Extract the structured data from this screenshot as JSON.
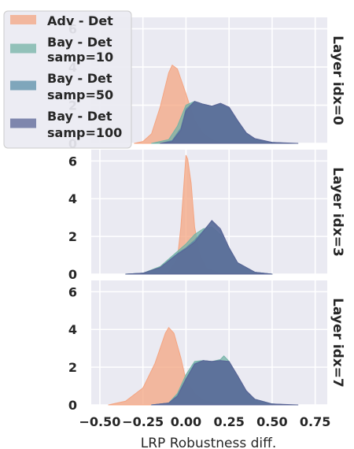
{
  "chart_data": {
    "type": "area",
    "title": "",
    "xlabel": "LRP Robustness diff.",
    "ylabel": "",
    "xlim": [
      -0.55,
      0.82
    ],
    "ylim": [
      0,
      6.6
    ],
    "x_ticks": [
      "−0.50",
      "−0.25",
      "0.00",
      "0.25",
      "0.50",
      "0.75"
    ],
    "x_tick_values": [
      -0.5,
      -0.25,
      0.0,
      0.25,
      0.5,
      0.75
    ],
    "y_ticks": [
      "0",
      "2",
      "4",
      "6"
    ],
    "y_tick_values": [
      0,
      2,
      4,
      6
    ],
    "grid": true,
    "legend_position": "top-left",
    "series": [
      {
        "name": "Adv - Det",
        "color": "#f4a582"
      },
      {
        "name": "Bay - Det\nsamp=10",
        "color": "#74b3a6"
      },
      {
        "name": "Bay - Det\nsamp=50",
        "color": "#5b8fa8"
      },
      {
        "name": "Bay - Det\nsamp=100",
        "color": "#5a6496"
      }
    ],
    "panels": [
      {
        "label": "Layer idx=0",
        "densities": [
          [
            [
              -0.3,
              0
            ],
            [
              -0.25,
              0.1
            ],
            [
              -0.2,
              0.5
            ],
            [
              -0.15,
              1.9
            ],
            [
              -0.1,
              3.7
            ],
            [
              -0.08,
              4.1
            ],
            [
              -0.05,
              3.9
            ],
            [
              0.0,
              2.6
            ],
            [
              0.05,
              1.2
            ],
            [
              0.1,
              0.5
            ],
            [
              0.15,
              0.2
            ],
            [
              0.2,
              0.05
            ],
            [
              0.25,
              0
            ]
          ],
          [
            [
              -0.2,
              0
            ],
            [
              -0.1,
              0.2
            ],
            [
              -0.05,
              0.9
            ],
            [
              0.0,
              2.0
            ],
            [
              0.05,
              2.2
            ],
            [
              0.1,
              2.05
            ],
            [
              0.15,
              1.95
            ],
            [
              0.2,
              2.05
            ],
            [
              0.25,
              1.8
            ],
            [
              0.3,
              1.1
            ],
            [
              0.35,
              0.5
            ],
            [
              0.4,
              0.2
            ],
            [
              0.5,
              0.05
            ],
            [
              0.6,
              0
            ]
          ],
          [
            [
              -0.15,
              0
            ],
            [
              -0.08,
              0.15
            ],
            [
              -0.03,
              0.8
            ],
            [
              0.0,
              1.8
            ],
            [
              0.05,
              2.2
            ],
            [
              0.1,
              2.05
            ],
            [
              0.15,
              1.95
            ],
            [
              0.2,
              2.05
            ],
            [
              0.25,
              1.85
            ],
            [
              0.3,
              1.15
            ],
            [
              0.35,
              0.55
            ],
            [
              0.4,
              0.2
            ],
            [
              0.5,
              0.05
            ],
            [
              0.6,
              0
            ]
          ],
          [
            [
              -0.15,
              0
            ],
            [
              -0.08,
              0.1
            ],
            [
              -0.03,
              0.7
            ],
            [
              0.0,
              1.7
            ],
            [
              0.05,
              2.2
            ],
            [
              0.1,
              2.05
            ],
            [
              0.15,
              1.95
            ],
            [
              0.2,
              2.1
            ],
            [
              0.25,
              1.9
            ],
            [
              0.3,
              1.2
            ],
            [
              0.35,
              0.55
            ],
            [
              0.4,
              0.25
            ],
            [
              0.5,
              0.05
            ],
            [
              0.65,
              0
            ]
          ]
        ]
      },
      {
        "label": "Layer idx=3",
        "densities": [
          [
            [
              -0.15,
              0
            ],
            [
              -0.1,
              0.1
            ],
            [
              -0.05,
              0.8
            ],
            [
              -0.03,
              2.5
            ],
            [
              -0.01,
              5.0
            ],
            [
              0.0,
              6.3
            ],
            [
              0.01,
              6.1
            ],
            [
              0.03,
              4.8
            ],
            [
              0.05,
              2.5
            ],
            [
              0.08,
              1.0
            ],
            [
              0.12,
              0.3
            ],
            [
              0.2,
              0.05
            ],
            [
              0.3,
              0
            ]
          ],
          [
            [
              -0.35,
              0
            ],
            [
              -0.25,
              0.05
            ],
            [
              -0.15,
              0.4
            ],
            [
              -0.05,
              1.2
            ],
            [
              0.0,
              1.6
            ],
            [
              0.05,
              2.1
            ],
            [
              0.1,
              2.4
            ],
            [
              0.15,
              2.5
            ],
            [
              0.2,
              2.1
            ],
            [
              0.25,
              1.3
            ],
            [
              0.3,
              0.6
            ],
            [
              0.4,
              0.1
            ],
            [
              0.5,
              0
            ]
          ],
          [
            [
              -0.35,
              0
            ],
            [
              -0.25,
              0.05
            ],
            [
              -0.15,
              0.35
            ],
            [
              -0.05,
              1.1
            ],
            [
              0.0,
              1.4
            ],
            [
              0.05,
              1.8
            ],
            [
              0.1,
              2.3
            ],
            [
              0.15,
              2.8
            ],
            [
              0.2,
              2.3
            ],
            [
              0.25,
              1.4
            ],
            [
              0.3,
              0.6
            ],
            [
              0.4,
              0.1
            ],
            [
              0.5,
              0
            ]
          ],
          [
            [
              -0.35,
              0
            ],
            [
              -0.25,
              0.05
            ],
            [
              -0.15,
              0.35
            ],
            [
              -0.05,
              1.05
            ],
            [
              0.0,
              1.35
            ],
            [
              0.05,
              1.7
            ],
            [
              0.1,
              2.25
            ],
            [
              0.15,
              2.85
            ],
            [
              0.2,
              2.4
            ],
            [
              0.25,
              1.4
            ],
            [
              0.3,
              0.6
            ],
            [
              0.4,
              0.1
            ],
            [
              0.5,
              0
            ]
          ]
        ]
      },
      {
        "label": "Layer idx=7",
        "densities": [
          [
            [
              -0.45,
              0
            ],
            [
              -0.35,
              0.2
            ],
            [
              -0.25,
              0.9
            ],
            [
              -0.18,
              2.2
            ],
            [
              -0.12,
              3.8
            ],
            [
              -0.1,
              4.1
            ],
            [
              -0.07,
              3.8
            ],
            [
              -0.03,
              2.5
            ],
            [
              0.0,
              1.3
            ],
            [
              0.05,
              0.6
            ],
            [
              0.1,
              0.25
            ],
            [
              0.2,
              0.05
            ],
            [
              0.3,
              0
            ]
          ],
          [
            [
              -0.2,
              0
            ],
            [
              -0.1,
              0.1
            ],
            [
              -0.05,
              0.6
            ],
            [
              0.0,
              1.6
            ],
            [
              0.05,
              2.3
            ],
            [
              0.1,
              2.35
            ],
            [
              0.15,
              2.3
            ],
            [
              0.2,
              2.4
            ],
            [
              0.22,
              2.6
            ],
            [
              0.25,
              2.3
            ],
            [
              0.3,
              1.5
            ],
            [
              0.35,
              0.7
            ],
            [
              0.4,
              0.3
            ],
            [
              0.5,
              0.05
            ],
            [
              0.6,
              0
            ]
          ],
          [
            [
              -0.2,
              0
            ],
            [
              -0.1,
              0.1
            ],
            [
              -0.05,
              0.5
            ],
            [
              0.0,
              1.4
            ],
            [
              0.05,
              2.2
            ],
            [
              0.1,
              2.35
            ],
            [
              0.15,
              2.3
            ],
            [
              0.2,
              2.35
            ],
            [
              0.25,
              2.3
            ],
            [
              0.3,
              1.5
            ],
            [
              0.35,
              0.7
            ],
            [
              0.4,
              0.3
            ],
            [
              0.5,
              0.05
            ],
            [
              0.6,
              0
            ]
          ],
          [
            [
              -0.2,
              0
            ],
            [
              -0.1,
              0.1
            ],
            [
              -0.05,
              0.45
            ],
            [
              0.0,
              1.35
            ],
            [
              0.05,
              2.15
            ],
            [
              0.1,
              2.35
            ],
            [
              0.15,
              2.3
            ],
            [
              0.2,
              2.35
            ],
            [
              0.25,
              2.3
            ],
            [
              0.3,
              1.55
            ],
            [
              0.35,
              0.75
            ],
            [
              0.4,
              0.3
            ],
            [
              0.5,
              0.05
            ],
            [
              0.65,
              0
            ]
          ]
        ]
      }
    ]
  }
}
